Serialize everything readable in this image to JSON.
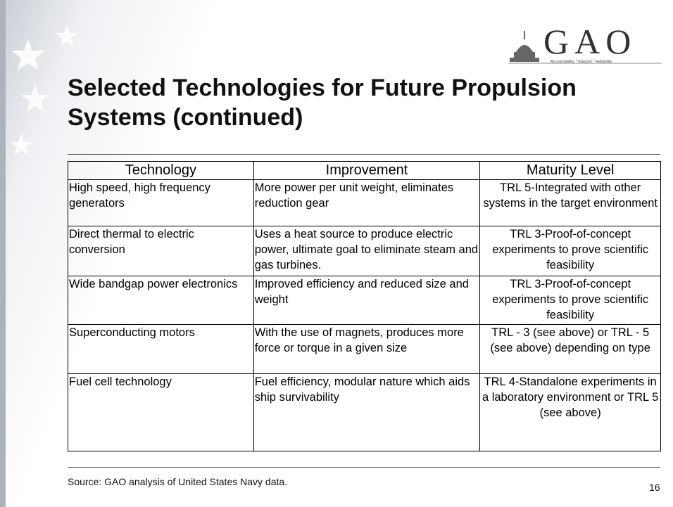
{
  "logo": {
    "text": "GAO",
    "tagline": "Accountability * Integrity * Reliability"
  },
  "title": "Selected Technologies for Future Propulsion Systems (continued)",
  "table": {
    "header": [
      "Technology",
      "Improvement",
      "Maturity Level"
    ],
    "rows": [
      [
        "High speed, high frequency generators",
        "More power per unit weight, eliminates reduction gear",
        "TRL 5-Integrated with other systems in the target environment"
      ],
      [
        "Direct thermal to electric conversion",
        "Uses a heat source to produce electric power, ultimate goal to eliminate steam and gas turbines.",
        "TRL 3-Proof-of-concept experiments to prove scientific feasibility"
      ],
      [
        "Wide bandgap power electronics",
        "Improved efficiency and reduced size and weight",
        "TRL 3-Proof-of-concept experiments to prove scientific feasibility"
      ],
      [
        "Superconducting motors",
        "With the use of magnets, produces more force or torque in a given size",
        "TRL - 3 (see above) or TRL - 5 (see above) depending on type"
      ],
      [
        "Fuel cell technology",
        "Fuel efficiency, modular nature which aids ship survivability",
        "TRL 4-Standalone experiments in a laboratory environment or TRL 5 (see above)"
      ]
    ]
  },
  "source": "Source: GAO analysis of United States Navy data.",
  "page_number": "16"
}
